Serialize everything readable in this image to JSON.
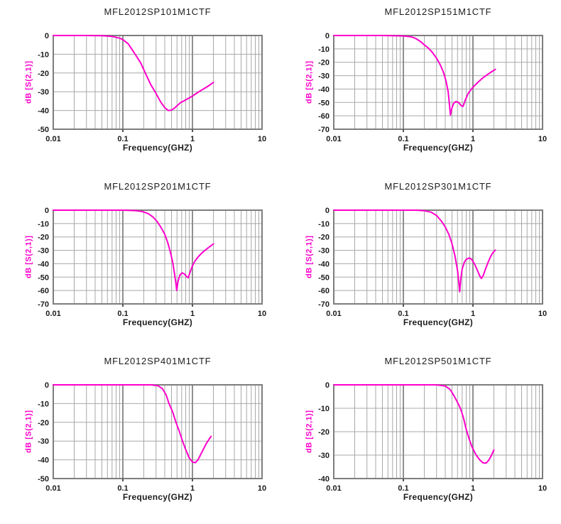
{
  "colors": {
    "curve": "#ff00cc",
    "grid_minor": "#a8a8a8",
    "grid_major": "#8f8f8f",
    "frame": "#7d7d7d",
    "tick_mark": "#555555",
    "text": "#1c1c1c",
    "ylabel_text": "#ff00cc",
    "background": "#ffffff"
  },
  "chart_data": [
    {
      "type": "line",
      "title": "MFL2012SP101M1CTF",
      "xlabel": "Frequency(GHZ)",
      "ylabel": "dB [S(2,1)]",
      "x_scale": "log",
      "xlim": [
        0.01,
        10
      ],
      "x_ticks": [
        "0.01",
        "0.1",
        "1",
        "10"
      ],
      "ylim": [
        -50,
        0
      ],
      "y_tick_step": 10,
      "grid": "on",
      "legend": "none",
      "series": [
        {
          "name": "S(2,1)",
          "points": [
            [
              0.01,
              0
            ],
            [
              0.03,
              0
            ],
            [
              0.05,
              -0.1
            ],
            [
              0.07,
              -0.5
            ],
            [
              0.09,
              -1.4
            ],
            [
              0.1,
              -2.2
            ],
            [
              0.12,
              -4.5
            ],
            [
              0.15,
              -10
            ],
            [
              0.18,
              -14.5
            ],
            [
              0.21,
              -20
            ],
            [
              0.25,
              -26
            ],
            [
              0.3,
              -31
            ],
            [
              0.35,
              -35.5
            ],
            [
              0.4,
              -38.5
            ],
            [
              0.45,
              -40
            ],
            [
              0.5,
              -39.8
            ],
            [
              0.55,
              -38.8
            ],
            [
              0.62,
              -37
            ],
            [
              0.68,
              -35.7
            ],
            [
              0.73,
              -35.2
            ],
            [
              0.8,
              -34.3
            ],
            [
              0.9,
              -33.3
            ],
            [
              1.0,
              -32.3
            ],
            [
              1.2,
              -30.3
            ],
            [
              1.4,
              -28.8
            ],
            [
              1.6,
              -27.5
            ],
            [
              1.8,
              -26.3
            ],
            [
              2.0,
              -25
            ]
          ]
        }
      ]
    },
    {
      "type": "line",
      "title": "MFL2012SP151M1CTF",
      "xlabel": "Frequency(GHZ)",
      "ylabel": "dB [S(2,1)]",
      "x_scale": "log",
      "xlim": [
        0.01,
        10
      ],
      "x_ticks": [
        "0.01",
        "0.1",
        "1",
        "10"
      ],
      "ylim": [
        -70,
        0
      ],
      "y_tick_step": 10,
      "grid": "on",
      "legend": "none",
      "series": [
        {
          "name": "S(2,1)",
          "points": [
            [
              0.01,
              0
            ],
            [
              0.05,
              0
            ],
            [
              0.1,
              -0.3
            ],
            [
              0.13,
              -1
            ],
            [
              0.15,
              -2.2
            ],
            [
              0.18,
              -4.8
            ],
            [
              0.2,
              -7
            ],
            [
              0.23,
              -9.5
            ],
            [
              0.26,
              -12.5
            ],
            [
              0.3,
              -17
            ],
            [
              0.34,
              -22
            ],
            [
              0.38,
              -28
            ],
            [
              0.41,
              -34
            ],
            [
              0.44,
              -42
            ],
            [
              0.46,
              -52
            ],
            [
              0.475,
              -59.5
            ],
            [
              0.5,
              -54
            ],
            [
              0.53,
              -50.5
            ],
            [
              0.57,
              -49.3
            ],
            [
              0.62,
              -50
            ],
            [
              0.68,
              -52.5
            ],
            [
              0.72,
              -53
            ],
            [
              0.78,
              -48
            ],
            [
              0.85,
              -43.5
            ],
            [
              0.95,
              -40
            ],
            [
              1.05,
              -37.5
            ],
            [
              1.2,
              -34.5
            ],
            [
              1.4,
              -31.5
            ],
            [
              1.6,
              -29.3
            ],
            [
              1.8,
              -27.5
            ],
            [
              2.0,
              -26
            ],
            [
              2.1,
              -25.3
            ]
          ]
        }
      ]
    },
    {
      "type": "line",
      "title": "MFL2012SP201M1CTF",
      "xlabel": "Frequency(GHZ)",
      "ylabel": "dB [S(2,1)]",
      "x_scale": "log",
      "xlim": [
        0.01,
        10
      ],
      "x_ticks": [
        "0.01",
        "0.1",
        "1",
        "10"
      ],
      "ylim": [
        -70,
        0
      ],
      "y_tick_step": 10,
      "grid": "on",
      "legend": "none",
      "series": [
        {
          "name": "S(2,1)",
          "points": [
            [
              0.01,
              0
            ],
            [
              0.1,
              0
            ],
            [
              0.15,
              -0.3
            ],
            [
              0.19,
              -1
            ],
            [
              0.23,
              -2.5
            ],
            [
              0.27,
              -5
            ],
            [
              0.31,
              -8.5
            ],
            [
              0.35,
              -12.5
            ],
            [
              0.4,
              -18
            ],
            [
              0.44,
              -24
            ],
            [
              0.48,
              -31
            ],
            [
              0.52,
              -39
            ],
            [
              0.55,
              -47
            ],
            [
              0.58,
              -55
            ],
            [
              0.595,
              -60
            ],
            [
              0.62,
              -53
            ],
            [
              0.66,
              -48.5
            ],
            [
              0.71,
              -46.8
            ],
            [
              0.76,
              -47.5
            ],
            [
              0.82,
              -49.5
            ],
            [
              0.87,
              -50.5
            ],
            [
              0.93,
              -46
            ],
            [
              1.0,
              -41.5
            ],
            [
              1.1,
              -37.5
            ],
            [
              1.25,
              -34
            ],
            [
              1.4,
              -31.5
            ],
            [
              1.6,
              -29
            ],
            [
              1.8,
              -27
            ],
            [
              2.0,
              -25.2
            ]
          ]
        }
      ]
    },
    {
      "type": "line",
      "title": "MFL2012SP301M1CTF",
      "xlabel": "Frequency(GHZ)",
      "ylabel": "dB [S(2,1)]",
      "x_scale": "log",
      "xlim": [
        0.01,
        10
      ],
      "x_ticks": [
        "0.01",
        "0.1",
        "1",
        "10"
      ],
      "ylim": [
        -70,
        0
      ],
      "y_tick_step": 10,
      "grid": "on",
      "legend": "none",
      "series": [
        {
          "name": "S(2,1)",
          "points": [
            [
              0.01,
              0
            ],
            [
              0.15,
              0
            ],
            [
              0.2,
              -0.4
            ],
            [
              0.25,
              -1.5
            ],
            [
              0.3,
              -4
            ],
            [
              0.35,
              -8
            ],
            [
              0.4,
              -12.5
            ],
            [
              0.45,
              -18
            ],
            [
              0.5,
              -25
            ],
            [
              0.55,
              -34
            ],
            [
              0.6,
              -45
            ],
            [
              0.63,
              -55
            ],
            [
              0.645,
              -61
            ],
            [
              0.67,
              -51
            ],
            [
              0.7,
              -44
            ],
            [
              0.75,
              -39
            ],
            [
              0.8,
              -36.8
            ],
            [
              0.88,
              -35.7
            ],
            [
              0.95,
              -36.5
            ],
            [
              1.05,
              -40
            ],
            [
              1.15,
              -44.5
            ],
            [
              1.25,
              -49
            ],
            [
              1.32,
              -51
            ],
            [
              1.4,
              -49
            ],
            [
              1.5,
              -44.5
            ],
            [
              1.65,
              -39
            ],
            [
              1.8,
              -34.5
            ],
            [
              1.95,
              -31.5
            ],
            [
              2.1,
              -29.8
            ]
          ]
        }
      ]
    },
    {
      "type": "line",
      "title": "MFL2012SP401M1CTF",
      "xlabel": "Frequency(GHZ)",
      "ylabel": "dB [S(2,1)]",
      "x_scale": "log",
      "xlim": [
        0.01,
        10
      ],
      "x_ticks": [
        "0.01",
        "0.1",
        "1",
        "10"
      ],
      "ylim": [
        -50,
        0
      ],
      "y_tick_step": 10,
      "grid": "on",
      "legend": "none",
      "series": [
        {
          "name": "S(2,1)",
          "points": [
            [
              0.01,
              0
            ],
            [
              0.25,
              0
            ],
            [
              0.32,
              -0.5
            ],
            [
              0.37,
              -2
            ],
            [
              0.42,
              -5.5
            ],
            [
              0.46,
              -10
            ],
            [
              0.52,
              -14.5
            ],
            [
              0.58,
              -20
            ],
            [
              0.65,
              -25
            ],
            [
              0.72,
              -30
            ],
            [
              0.8,
              -34.5
            ],
            [
              0.9,
              -39
            ],
            [
              1.0,
              -41.2
            ],
            [
              1.1,
              -41.5
            ],
            [
              1.2,
              -40
            ],
            [
              1.3,
              -37.5
            ],
            [
              1.45,
              -34
            ],
            [
              1.6,
              -31
            ],
            [
              1.75,
              -28.8
            ],
            [
              1.85,
              -27.5
            ]
          ]
        }
      ]
    },
    {
      "type": "line",
      "title": "MFL2012SP501M1CTF",
      "xlabel": "Frequency(GHZ)",
      "ylabel": "dB [S(2,1)]",
      "x_scale": "log",
      "xlim": [
        0.01,
        10
      ],
      "x_ticks": [
        "0.01",
        "0.1",
        "1",
        "10"
      ],
      "ylim": [
        -40,
        0
      ],
      "y_tick_step": 10,
      "grid": "on",
      "legend": "none",
      "series": [
        {
          "name": "S(2,1)",
          "points": [
            [
              0.01,
              0
            ],
            [
              0.3,
              0
            ],
            [
              0.4,
              -0.5
            ],
            [
              0.47,
              -2
            ],
            [
              0.53,
              -4.5
            ],
            [
              0.6,
              -7.5
            ],
            [
              0.66,
              -10
            ],
            [
              0.73,
              -14
            ],
            [
              0.8,
              -19
            ],
            [
              0.88,
              -23
            ],
            [
              0.97,
              -26.5
            ],
            [
              1.1,
              -29.8
            ],
            [
              1.25,
              -32
            ],
            [
              1.4,
              -33.3
            ],
            [
              1.55,
              -33.4
            ],
            [
              1.7,
              -32
            ],
            [
              1.85,
              -30
            ],
            [
              2.0,
              -27.8
            ]
          ]
        }
      ]
    }
  ]
}
